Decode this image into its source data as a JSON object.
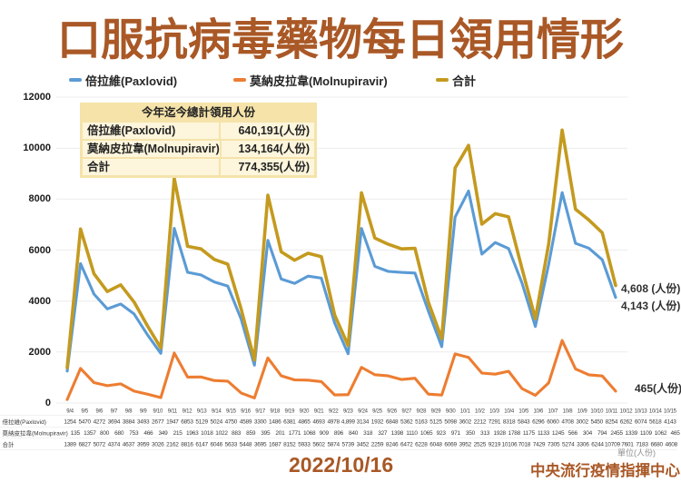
{
  "title": "口服抗病毒藥物每日領用情形",
  "colors": {
    "title_brown": "#a95826",
    "paxlovid_blue": "#5b9bd5",
    "molnupiravir_orange": "#ed7d31",
    "total_gold": "#c49a1f",
    "summary_bg": "#f5e3aa",
    "summary_row_bg": "#fdf6dc",
    "gridline": "#ececec"
  },
  "summary": {
    "title": "今年迄今總計領用人份",
    "rows": [
      {
        "label": "倍拉維(Paxlovid)",
        "value": "640,191(人份)"
      },
      {
        "label": "莫納皮拉韋(Molnupiravir)",
        "value": "134,164(人份)"
      },
      {
        "label": "合計",
        "value": "774,355(人份)"
      }
    ]
  },
  "annotations": {
    "total_end": "4,608 (人份)",
    "paxlovid_end": "4,143 (人份)",
    "molnupiravir_end": "465(人份)"
  },
  "unit_label": "單位(人份)",
  "footer": {
    "date": "2022/10/16",
    "organization": "中央流行疫情指揮中心"
  },
  "chart_data": {
    "type": "line",
    "title": "口服抗病毒藥物每日領用情形",
    "categories": [
      "9/4",
      "9/5",
      "9/6",
      "9/7",
      "9/8",
      "9/9",
      "9/10",
      "9/11",
      "9/12",
      "9/13",
      "9/14",
      "9/15",
      "9/16",
      "9/17",
      "9/18",
      "9/19",
      "9/20",
      "9/21",
      "9/22",
      "9/23",
      "9/24",
      "9/25",
      "9/26",
      "9/27",
      "9/28",
      "9/29",
      "9/30",
      "10/1",
      "10/2",
      "10/3",
      "10/4",
      "10/5",
      "10/6",
      "10/7",
      "10/8",
      "10/9",
      "10/10",
      "10/11",
      "10/12",
      "10/13",
      "10/14",
      "10/15"
    ],
    "series": [
      {
        "name": "倍拉維(Paxlovid)",
        "color": "#5b9bd5",
        "values": [
          1254,
          5470,
          4272,
          3694,
          3884,
          3493,
          2677,
          1947,
          6853,
          5129,
          5024,
          4750,
          4589,
          3300,
          1486,
          6381,
          4865,
          4693,
          4978,
          4899,
          3134,
          1932,
          6848,
          5362,
          5163,
          5125,
          5098,
          3602,
          2212,
          7291,
          8318,
          5843,
          6296,
          6060,
          4708,
          3002,
          5450,
          8254,
          6262,
          6074,
          5618,
          4143
        ]
      },
      {
        "name": "莫納皮拉韋(Molnupiravir)",
        "color": "#ed7d31",
        "values": [
          135,
          1357,
          800,
          680,
          753,
          466,
          349,
          215,
          1963,
          1018,
          1022,
          883,
          859,
          395,
          201,
          1771,
          1068,
          909,
          896,
          840,
          318,
          327,
          1398,
          1110,
          1065,
          923,
          971,
          350,
          313,
          1928,
          1788,
          1175,
          1133,
          1245,
          566,
          304,
          794,
          2455,
          1339,
          1109,
          1062,
          465
        ]
      },
      {
        "name": "合計",
        "color": "#c49a1f",
        "values": [
          1389,
          6827,
          5072,
          4374,
          4637,
          3959,
          3026,
          2162,
          8816,
          6147,
          6046,
          5633,
          5448,
          3695,
          1687,
          8152,
          5933,
          5602,
          5874,
          5739,
          3452,
          2259,
          8246,
          6472,
          6228,
          6048,
          6069,
          3952,
          2525,
          9219,
          10106,
          7018,
          7429,
          7305,
          5274,
          3306,
          6244,
          10709,
          7601,
          7183,
          6680,
          4608
        ]
      }
    ],
    "ylim": [
      0,
      12000
    ],
    "y_ticks": [
      0,
      2000,
      4000,
      6000,
      8000,
      10000,
      12000
    ],
    "grid": "horizontal-only",
    "legend_position": "top"
  },
  "data_table": {
    "row_labels": [
      "",
      "倍拉維(Paxlovid)",
      "莫納皮拉韋(Molnupiravir)",
      "合計"
    ],
    "dates": [
      "9/4",
      "9/5",
      "9/6",
      "9/7",
      "9/8",
      "9/9",
      "9/10",
      "9/11",
      "9/12",
      "9/13",
      "9/14",
      "9/15",
      "9/16",
      "9/17",
      "9/18",
      "9/19",
      "9/20",
      "9/21",
      "9/22",
      "9/23",
      "9/24",
      "9/25",
      "9/26",
      "9/27",
      "9/28",
      "9/29",
      "9/30",
      "10/1",
      "10/2",
      "10/3",
      "10/4",
      "10/5",
      "10/6",
      "10/7",
      "10/8",
      "10/9",
      "10/10",
      "10/11",
      "10/12",
      "10/13",
      "10/14",
      "10/15"
    ],
    "paxlovid": [
      "1254",
      "5470",
      "4272",
      "3694",
      "3884",
      "3493",
      "2677",
      "1947",
      "6853",
      "5129",
      "5024",
      "4750",
      "4589",
      "3300",
      "1486",
      "6381",
      "4865",
      "4693",
      "4978",
      "4,899",
      "3134",
      "1932",
      "6848",
      "5362",
      "5163",
      "5125",
      "5098",
      "3602",
      "2212",
      "7291",
      "8318",
      "5843",
      "6296",
      "6060",
      "4708",
      "3002",
      "5450",
      "8254",
      "6262",
      "6074",
      "5618",
      "4143"
    ],
    "molnupiravir": [
      "135",
      "1357",
      "800",
      "680",
      "753",
      "466",
      "349",
      "215",
      "1963",
      "1018",
      "1022",
      "883",
      "859",
      "395",
      "201",
      "1771",
      "1068",
      "909",
      "896",
      "840",
      "318",
      "327",
      "1398",
      "1110",
      "1065",
      "923",
      "971",
      "350",
      "313",
      "1928",
      "1788",
      "1175",
      "1133",
      "1245",
      "566",
      "304",
      "794",
      "2455",
      "1339",
      "1109",
      "1062",
      "465"
    ],
    "total": [
      "1389",
      "6827",
      "5072",
      "4374",
      "4637",
      "3959",
      "3026",
      "2162",
      "8816",
      "6147",
      "6046",
      "5633",
      "5448",
      "3695",
      "1687",
      "8152",
      "5933",
      "5602",
      "5874",
      "5739",
      "3452",
      "2259",
      "8246",
      "6472",
      "6228",
      "6048",
      "6069",
      "3952",
      "2525",
      "9219",
      "10106",
      "7018",
      "7429",
      "7305",
      "5274",
      "3306",
      "6244",
      "10709",
      "7601",
      "7183",
      "6680",
      "4608"
    ]
  }
}
